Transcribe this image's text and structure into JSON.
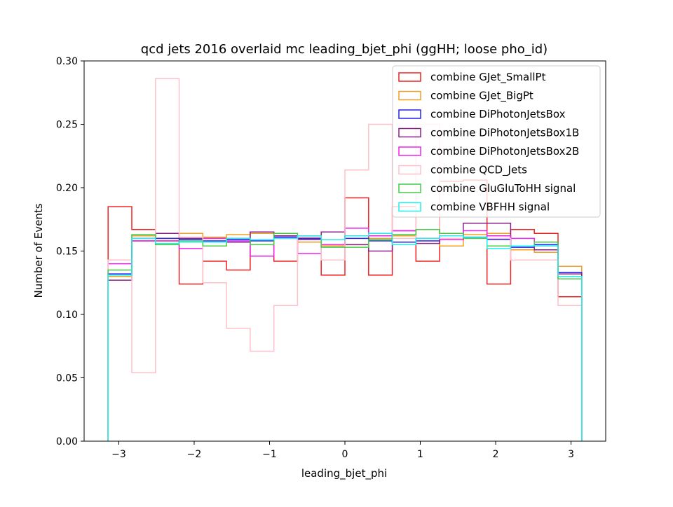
{
  "chart_data": {
    "type": "histogram-step",
    "title": "qcd jets 2016 overlaid mc leading_bjet_phi (ggHH; loose pho_id)",
    "xlabel": "leading_bjet_phi",
    "ylabel": "Number of Events",
    "xlim": [
      -3.46,
      3.46
    ],
    "ylim": [
      0.0,
      0.3
    ],
    "xticks": [
      -3,
      -2,
      -1,
      0,
      1,
      2,
      3
    ],
    "xtick_labels": [
      "−3",
      "−2",
      "−1",
      "0",
      "1",
      "2",
      "3"
    ],
    "yticks": [
      0.0,
      0.05,
      0.1,
      0.15,
      0.2,
      0.25,
      0.3
    ],
    "ytick_labels": [
      "0.00",
      "0.05",
      "0.10",
      "0.15",
      "0.20",
      "0.25",
      "0.30"
    ],
    "legend_position": "top-right",
    "bin_edges": [
      -3.1416,
      -2.8274,
      -2.5133,
      -2.1991,
      -1.885,
      -1.5708,
      -1.2566,
      -0.9425,
      -0.6283,
      -0.3142,
      0.0,
      0.3142,
      0.6283,
      0.9425,
      1.2566,
      1.5708,
      1.885,
      2.1991,
      2.5133,
      2.8274,
      3.1416
    ],
    "series": [
      {
        "name": "combine GJet_SmallPt",
        "color": "#ee2222",
        "values": [
          0.185,
          0.167,
          0.158,
          0.124,
          0.142,
          0.135,
          0.165,
          0.142,
          0.16,
          0.131,
          0.192,
          0.131,
          0.185,
          0.142,
          0.205,
          0.206,
          0.124,
          0.167,
          0.164,
          0.114
        ]
      },
      {
        "name": "combine GJet_BigPt",
        "color": "#f0a020",
        "values": [
          0.13,
          0.162,
          0.16,
          0.164,
          0.161,
          0.163,
          0.164,
          0.16,
          0.157,
          0.154,
          0.155,
          0.16,
          0.162,
          0.16,
          0.154,
          0.163,
          0.164,
          0.151,
          0.149,
          0.138
        ]
      },
      {
        "name": "combine DiPhotonJetsBox",
        "color": "#2222ee",
        "values": [
          0.132,
          0.16,
          0.16,
          0.159,
          0.158,
          0.159,
          0.158,
          0.161,
          0.16,
          0.159,
          0.16,
          0.158,
          0.157,
          0.158,
          0.159,
          0.161,
          0.159,
          0.153,
          0.155,
          0.133
        ]
      },
      {
        "name": "combine DiPhotonJetsBox1B",
        "color": "#882288",
        "values": [
          0.127,
          0.158,
          0.164,
          0.16,
          0.16,
          0.157,
          0.165,
          0.162,
          0.159,
          0.165,
          0.155,
          0.15,
          0.166,
          0.156,
          0.159,
          0.172,
          0.172,
          0.154,
          0.151,
          0.132
        ]
      },
      {
        "name": "combine DiPhotonJetsBox2B",
        "color": "#ee22ee",
        "values": [
          0.14,
          0.158,
          0.158,
          0.152,
          0.16,
          0.158,
          0.146,
          0.16,
          0.148,
          0.155,
          0.168,
          0.162,
          0.166,
          0.16,
          0.159,
          0.166,
          0.162,
          0.16,
          0.157,
          0.13
        ]
      },
      {
        "name": "combine QCD_Jets",
        "color": "#ffc0cb",
        "values": [
          0.143,
          0.054,
          0.286,
          0.161,
          0.125,
          0.089,
          0.071,
          0.107,
          0.161,
          0.143,
          0.214,
          0.25,
          0.16,
          0.25,
          0.16,
          0.16,
          0.16,
          0.143,
          0.143,
          0.107
        ]
      },
      {
        "name": "combine GluGluToHH signal",
        "color": "#44cc44",
        "values": [
          0.135,
          0.163,
          0.155,
          0.158,
          0.154,
          0.16,
          0.155,
          0.164,
          0.162,
          0.153,
          0.153,
          0.159,
          0.163,
          0.167,
          0.164,
          0.16,
          0.154,
          0.154,
          0.157,
          0.128
        ]
      },
      {
        "name": "combine VBFHH signal",
        "color": "#22eeee",
        "values": [
          0.131,
          0.16,
          0.156,
          0.157,
          0.157,
          0.16,
          0.159,
          0.16,
          0.162,
          0.159,
          0.162,
          0.164,
          0.155,
          0.16,
          0.162,
          0.161,
          0.152,
          0.154,
          0.154,
          0.13
        ]
      }
    ]
  }
}
